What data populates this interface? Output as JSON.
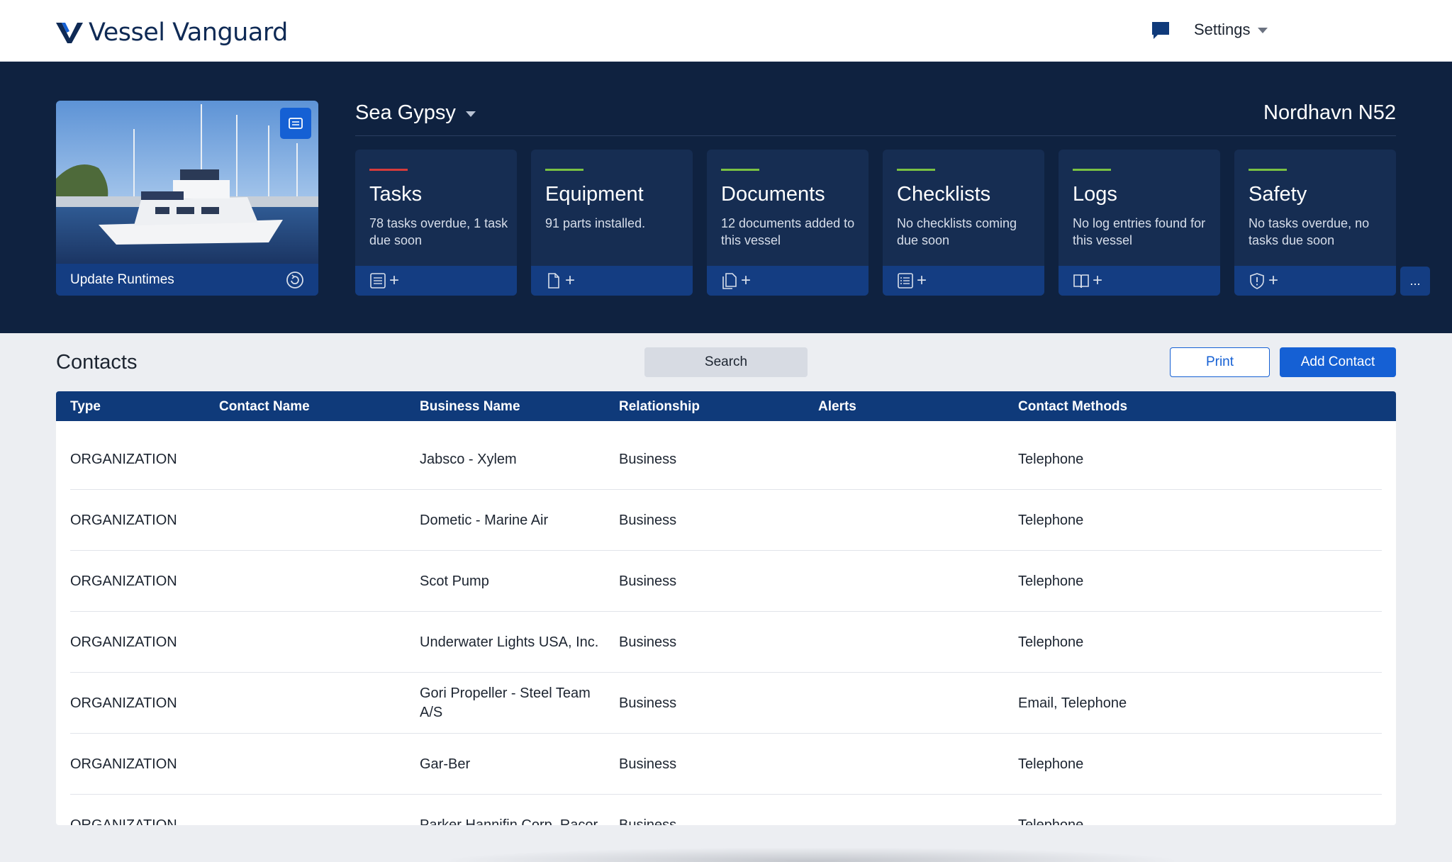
{
  "header": {
    "brand": "Vessel Vanguard",
    "settings_label": "Settings"
  },
  "vessel": {
    "name": "Sea Gypsy",
    "model": "Nordhavn N52",
    "runtimes_label": "Update Runtimes"
  },
  "tiles": [
    {
      "title": "Tasks",
      "desc": "78 tasks overdue, 1 task due soon",
      "accent": "#d63b3b",
      "icon": "list-icon"
    },
    {
      "title": "Equipment",
      "desc": "91 parts installed.",
      "accent": "#7ac143",
      "icon": "document-icon"
    },
    {
      "title": "Documents",
      "desc": "12 documents added to this vessel",
      "accent": "#7ac143",
      "icon": "documents-icon"
    },
    {
      "title": "Checklists",
      "desc": "No checklists coming due soon",
      "accent": "#7ac143",
      "icon": "checklist-icon"
    },
    {
      "title": "Logs",
      "desc": "No log entries found for this vessel",
      "accent": "#7ac143",
      "icon": "book-icon"
    },
    {
      "title": "Safety",
      "desc": "No tasks overdue, no tasks due soon",
      "accent": "#7ac143",
      "icon": "shield-icon"
    }
  ],
  "more_label": "...",
  "contacts": {
    "title": "Contacts",
    "search_label": "Search",
    "print_label": "Print",
    "add_label": "Add Contact",
    "columns": [
      "Type",
      "Contact Name",
      "Business Name",
      "Relationship",
      "Alerts",
      "Contact Methods"
    ],
    "rows": [
      {
        "type": "ORGANIZATION",
        "contact": "",
        "business": "Jabsco - Xylem",
        "relationship": "Business",
        "alerts": "",
        "methods": "Telephone"
      },
      {
        "type": "ORGANIZATION",
        "contact": "",
        "business": "Dometic - Marine Air",
        "relationship": "Business",
        "alerts": "",
        "methods": "Telephone"
      },
      {
        "type": "ORGANIZATION",
        "contact": "",
        "business": "Scot Pump",
        "relationship": "Business",
        "alerts": "",
        "methods": "Telephone"
      },
      {
        "type": "ORGANIZATION",
        "contact": "",
        "business": "Underwater Lights USA, Inc.",
        "relationship": "Business",
        "alerts": "",
        "methods": "Telephone"
      },
      {
        "type": "ORGANIZATION",
        "contact": "",
        "business": "Gori Propeller - Steel Team A/S",
        "relationship": "Business",
        "alerts": "",
        "methods": "Email, Telephone"
      },
      {
        "type": "ORGANIZATION",
        "contact": "",
        "business": "Gar-Ber",
        "relationship": "Business",
        "alerts": "",
        "methods": "Telephone"
      },
      {
        "type": "ORGANIZATION",
        "contact": "",
        "business": "Parker Hannifin Corp, Racor",
        "relationship": "Business",
        "alerts": "",
        "methods": "Telephone"
      }
    ]
  }
}
